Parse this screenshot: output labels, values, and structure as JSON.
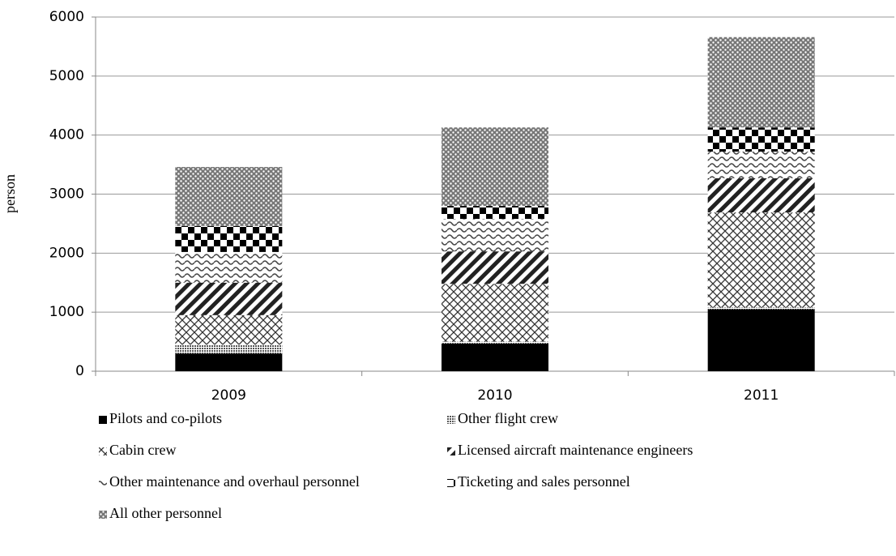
{
  "chart_data": {
    "type": "stacked_bar",
    "categories": [
      "2009",
      "2010",
      "2011"
    ],
    "ylabel": "person",
    "ylim": [
      0,
      6000
    ],
    "yticks": [
      0,
      1000,
      2000,
      3000,
      4000,
      5000,
      6000
    ],
    "grid": true,
    "series": [
      {
        "name": "Pilots and co-pilots",
        "pattern": "solid",
        "color": "#000000",
        "values": [
          300,
          470,
          1050
        ]
      },
      {
        "name": "Other flight crew",
        "pattern": "fine-dots",
        "color": "#555555",
        "values": [
          150,
          30,
          30
        ]
      },
      {
        "name": "Cabin crew",
        "pattern": "crosshatch",
        "color": "#333333",
        "values": [
          500,
          980,
          1610
        ]
      },
      {
        "name": "Licensed aircraft maintenance engineers",
        "pattern": "diagonal",
        "color": "#222222",
        "values": [
          550,
          550,
          580
        ]
      },
      {
        "name": "Other maintenance and overhaul personnel",
        "pattern": "wave",
        "color": "#444444",
        "values": [
          520,
          550,
          450
        ]
      },
      {
        "name": "Ticketing and sales personnel",
        "pattern": "checker",
        "color": "#000000",
        "values": [
          440,
          220,
          410
        ]
      },
      {
        "name": "All other personnel",
        "pattern": "dots",
        "color": "#666666",
        "values": [
          1000,
          1330,
          1530
        ]
      }
    ]
  }
}
